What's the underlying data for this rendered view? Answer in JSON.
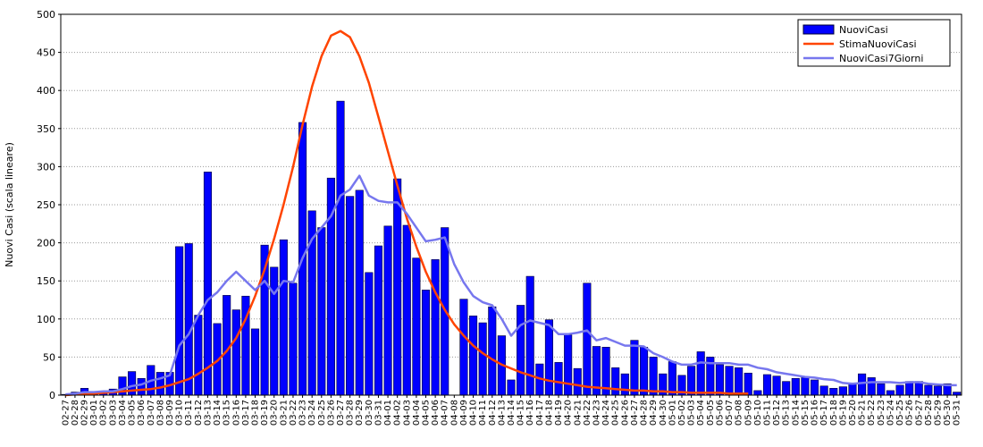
{
  "chart_data": {
    "type": "bar",
    "ylabel": "Nuovi Casi (scala lineare)",
    "categories": [
      "02-27",
      "02-28",
      "02-29",
      "03-01",
      "03-02",
      "03-03",
      "03-04",
      "03-05",
      "03-06",
      "03-07",
      "03-08",
      "03-09",
      "03-10",
      "03-11",
      "03-12",
      "03-13",
      "03-14",
      "03-15",
      "03-16",
      "03-17",
      "03-18",
      "03-19",
      "03-20",
      "03-21",
      "03-22",
      "03-23",
      "03-24",
      "03-25",
      "03-26",
      "03-27",
      "03-28",
      "03-29",
      "03-30",
      "03-31",
      "04-01",
      "04-02",
      "04-03",
      "04-04",
      "04-05",
      "04-06",
      "04-07",
      "04-08",
      "04-09",
      "04-10",
      "04-11",
      "04-12",
      "04-13",
      "04-14",
      "04-15",
      "04-16",
      "04-17",
      "04-18",
      "04-19",
      "04-20",
      "04-21",
      "04-22",
      "04-23",
      "04-24",
      "04-25",
      "04-26",
      "04-27",
      "04-28",
      "04-29",
      "04-30",
      "05-01",
      "05-02",
      "05-03",
      "05-04",
      "05-05",
      "05-06",
      "05-07",
      "05-08",
      "05-09",
      "05-10",
      "05-11",
      "05-12",
      "05-13",
      "05-14",
      "05-15",
      "05-16",
      "05-17",
      "05-18",
      "05-19",
      "05-20",
      "05-21",
      "05-22",
      "05-23",
      "05-24",
      "05-25",
      "05-26",
      "05-27",
      "05-28",
      "05-29",
      "05-30",
      "05-31"
    ],
    "series": [
      {
        "name": "NuoviCasi",
        "kind": "bar",
        "color": "#0000ff",
        "values": [
          1,
          4,
          9,
          4,
          5,
          8,
          24,
          31,
          22,
          39,
          30,
          30,
          195,
          199,
          105,
          293,
          94,
          131,
          112,
          130,
          87,
          197,
          168,
          204,
          147,
          358,
          242,
          220,
          285,
          386,
          261,
          269,
          161,
          196,
          222,
          284,
          223,
          180,
          138,
          178,
          220,
          0,
          126,
          104,
          95,
          116,
          78,
          20,
          118,
          156,
          41,
          99,
          43,
          79,
          35,
          147,
          64,
          63,
          36,
          28,
          72,
          63,
          50,
          28,
          44,
          26,
          38,
          57,
          50,
          40,
          38,
          36,
          29,
          6,
          27,
          25,
          18,
          22,
          23,
          20,
          12,
          9,
          11,
          15,
          28,
          23,
          15,
          6,
          13,
          18,
          18,
          13,
          12,
          15,
          4
        ]
      },
      {
        "name": "StimaNuoviCasi",
        "kind": "line",
        "color": "#ff4400",
        "values": [
          0,
          1,
          1,
          2,
          3,
          4,
          5,
          6,
          7,
          8,
          10,
          13,
          17,
          21,
          28,
          36,
          45,
          58,
          75,
          100,
          130,
          165,
          205,
          250,
          300,
          355,
          405,
          445,
          472,
          478,
          470,
          445,
          410,
          365,
          320,
          275,
          232,
          195,
          162,
          135,
          112,
          93,
          78,
          65,
          55,
          47,
          40,
          35,
          30,
          26,
          22,
          19,
          17,
          15,
          13,
          11,
          10,
          9,
          8,
          7,
          6,
          6,
          5,
          5,
          4,
          4,
          3,
          3,
          3,
          3,
          2,
          2,
          2,
          null,
          null,
          null,
          null,
          null,
          null,
          null,
          null,
          null,
          null,
          null,
          null,
          null,
          null,
          null,
          null,
          null,
          null,
          null,
          null,
          null,
          null
        ]
      },
      {
        "name": "NuoviCasi7Giorni",
        "kind": "line",
        "color": "#7777ee",
        "values": [
          1,
          2,
          4,
          4,
          5,
          5,
          8,
          12,
          14,
          19,
          22,
          26,
          65,
          80,
          105,
          125,
          135,
          150,
          162,
          150,
          138,
          150,
          133,
          150,
          148,
          180,
          205,
          220,
          235,
          262,
          270,
          288,
          262,
          255,
          253,
          253,
          238,
          220,
          202,
          204,
          207,
          172,
          148,
          130,
          122,
          118,
          100,
          78,
          92,
          98,
          95,
          92,
          80,
          80,
          82,
          85,
          72,
          75,
          70,
          65,
          65,
          64,
          55,
          50,
          44,
          40,
          40,
          43,
          42,
          42,
          42,
          40,
          40,
          36,
          34,
          30,
          28,
          26,
          24,
          23,
          21,
          20,
          16,
          15,
          16,
          17,
          17,
          17,
          16,
          17,
          17,
          15,
          14,
          13,
          13
        ]
      }
    ],
    "ylim": [
      0,
      500
    ],
    "yticks": [
      0,
      50,
      100,
      150,
      200,
      250,
      300,
      350,
      400,
      450,
      500
    ],
    "grid": true,
    "legend": "upper right"
  }
}
